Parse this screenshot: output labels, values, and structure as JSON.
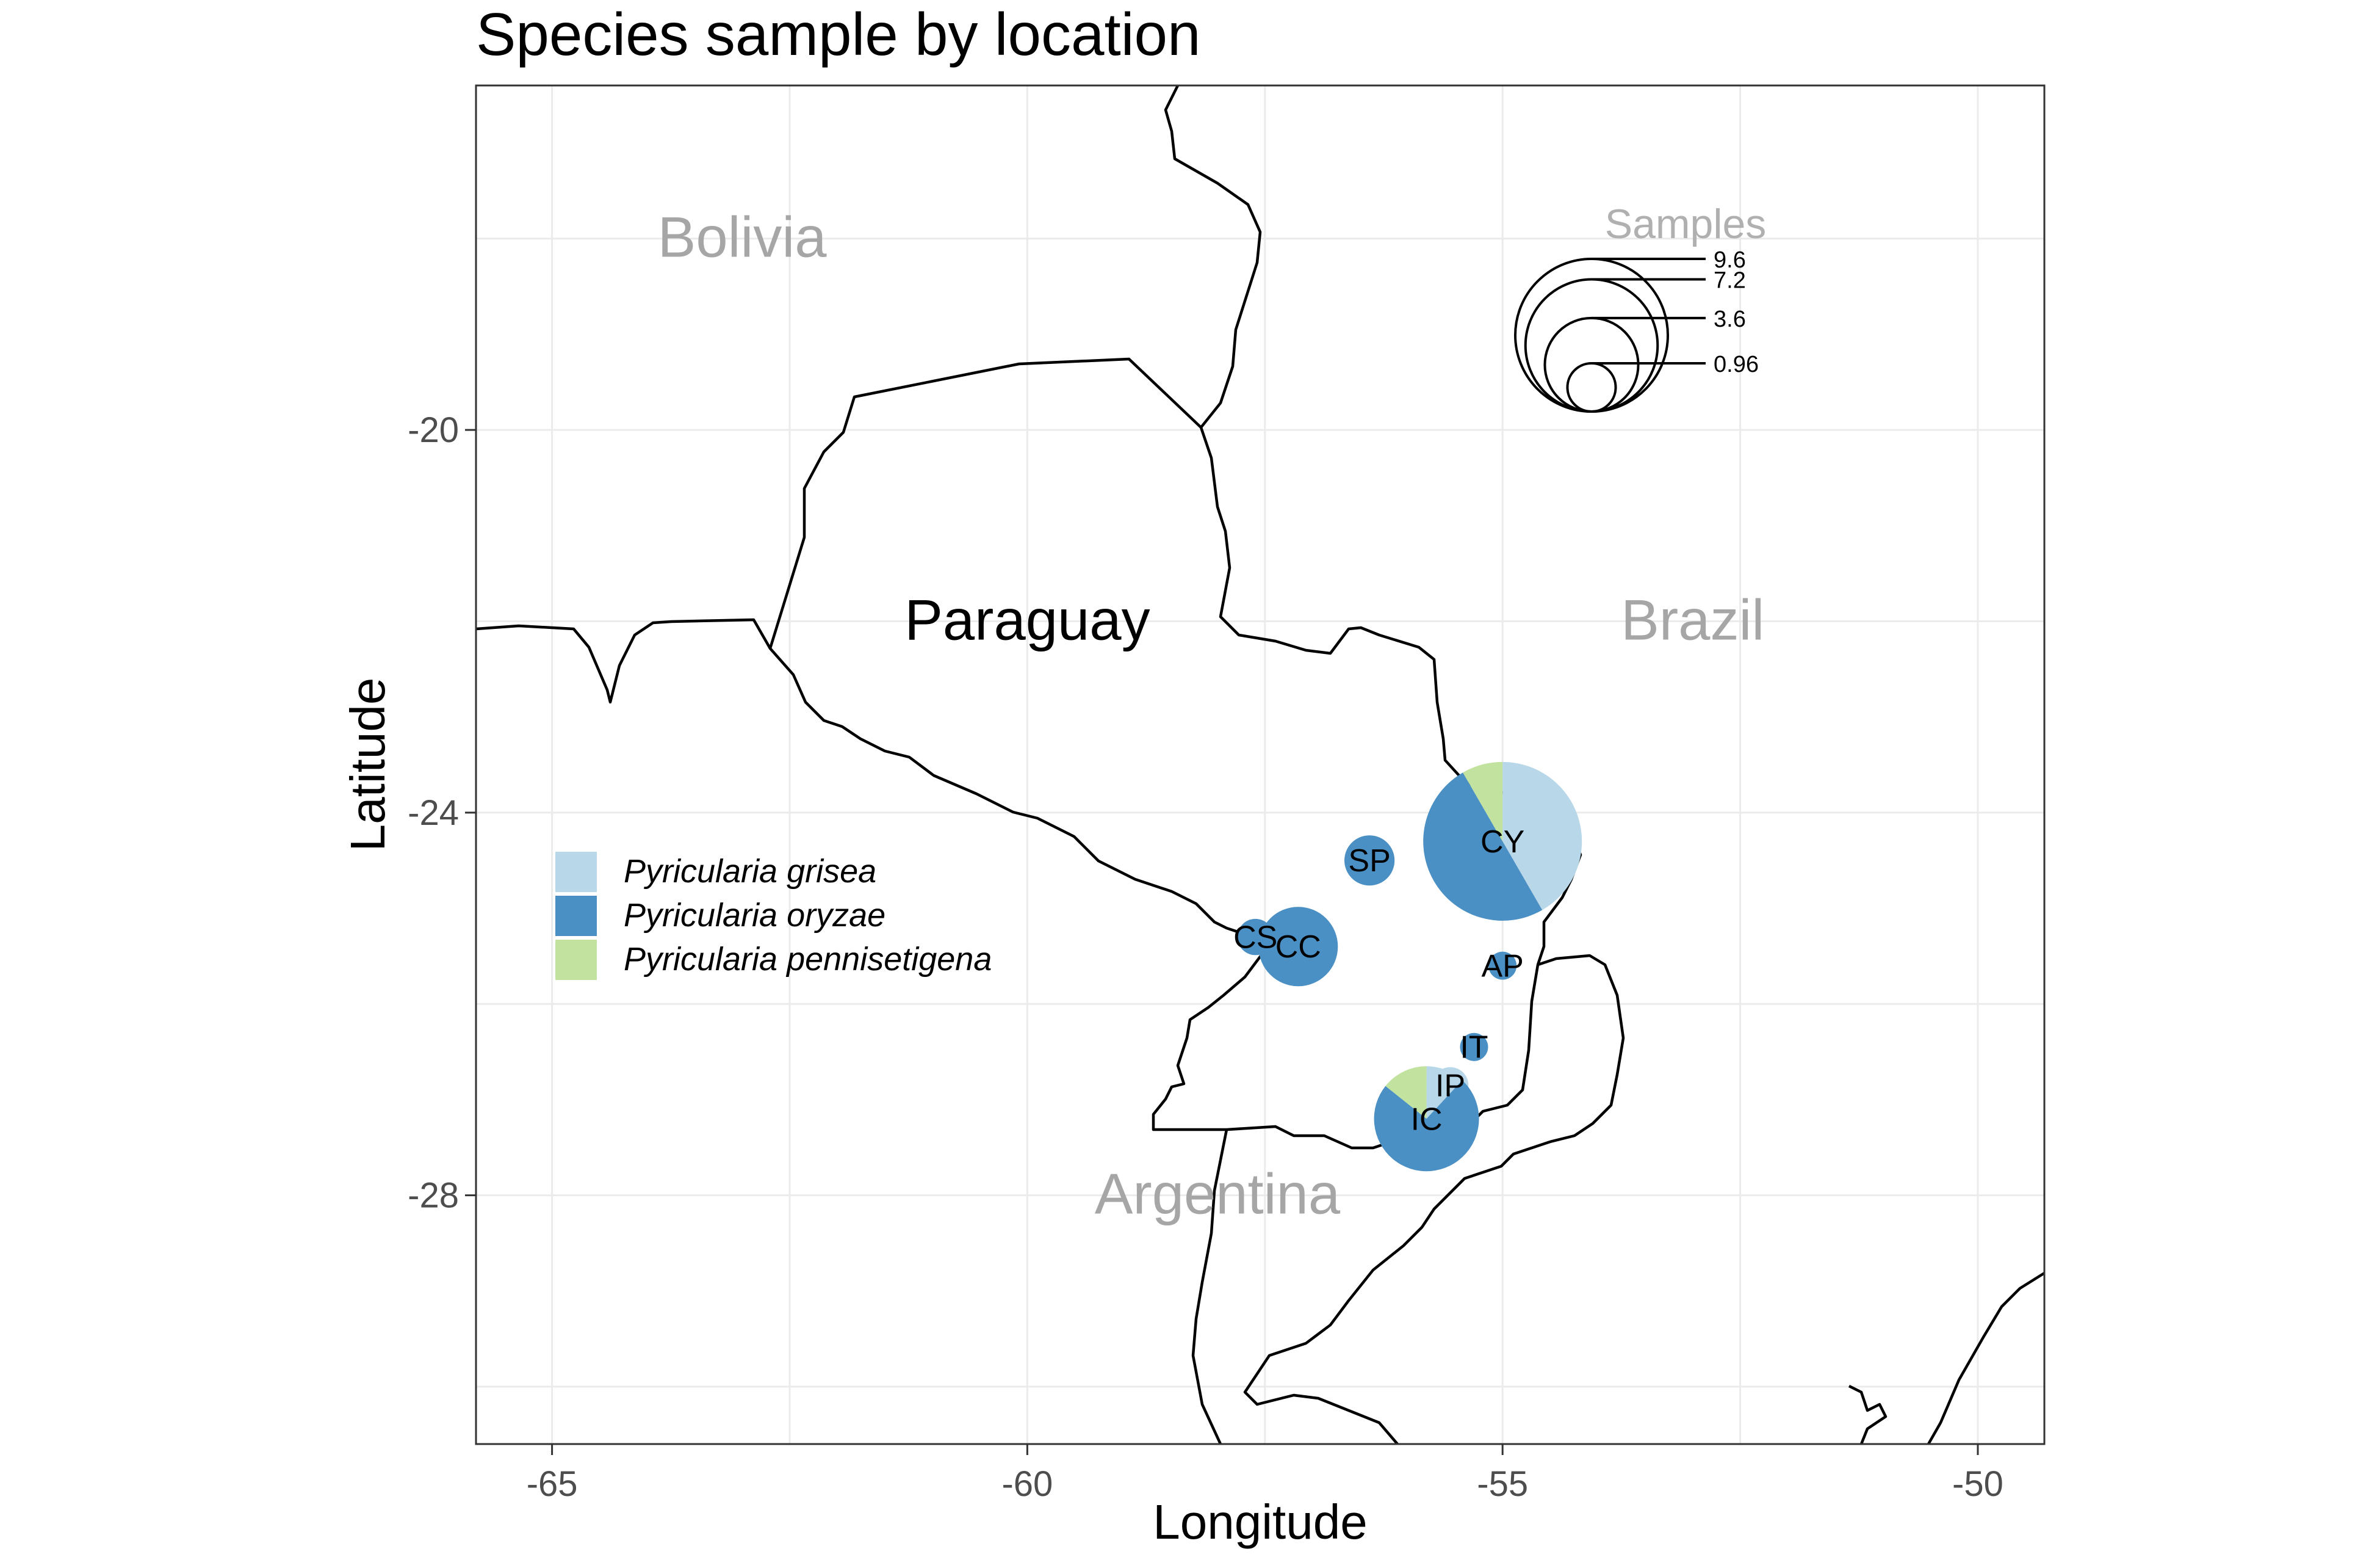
{
  "chart_data": {
    "type": "map",
    "title": "Species sample by location",
    "xlabel": "Longitude",
    "ylabel": "Latitude",
    "xlim": [
      -65.8,
      -49.3
    ],
    "ylim": [
      -30.6,
      -16.4
    ],
    "x_ticks": [
      -65,
      -60,
      -55,
      -50
    ],
    "x_tick_labels": [
      "-65",
      "-60",
      "-55",
      "-50"
    ],
    "y_ticks": [
      -20,
      -24,
      -28
    ],
    "y_tick_labels": [
      "-20",
      "-24",
      "-28"
    ],
    "grid": true,
    "countries": [
      {
        "name": "Bolivia",
        "lon": -63.0,
        "lat": -18.0,
        "color": "#a6a6a6"
      },
      {
        "name": "Paraguay",
        "lon": -60.0,
        "lat": -22.0,
        "color": "#000000"
      },
      {
        "name": "Brazil",
        "lon": -53.0,
        "lat": -22.0,
        "color": "#a6a6a6"
      },
      {
        "name": "Argentina",
        "lon": -58.0,
        "lat": -28.0,
        "color": "#a6a6a6"
      }
    ],
    "series": [
      {
        "name": "Pyricularia grisea",
        "color": "#b8d7e9"
      },
      {
        "name": "Pyricularia oryzae",
        "color": "#4a90c4"
      },
      {
        "name": "Pyricularia pennisetigena",
        "color": "#c2e3a0"
      }
    ],
    "sites": [
      {
        "label": "CY",
        "lon": -55.0,
        "lat": -24.3,
        "total": 9.6,
        "values": [
          4.0,
          4.8,
          0.8
        ]
      },
      {
        "label": "SP",
        "lon": -56.4,
        "lat": -24.5,
        "total": 0.96,
        "values": [
          0,
          0.96,
          0
        ]
      },
      {
        "label": "CS",
        "lon": -57.6,
        "lat": -25.3,
        "total": 0.5,
        "values": [
          0,
          0.5,
          0
        ]
      },
      {
        "label": "CC",
        "lon": -57.15,
        "lat": -25.4,
        "total": 2.4,
        "values": [
          0,
          2.4,
          0
        ]
      },
      {
        "label": "AP",
        "lon": -55.0,
        "lat": -25.6,
        "total": 0.3,
        "values": [
          0,
          0.3,
          0
        ]
      },
      {
        "label": "IT",
        "lon": -55.3,
        "lat": -26.45,
        "total": 0.3,
        "values": [
          0,
          0.3,
          0
        ]
      },
      {
        "label": "IP",
        "lon": -55.55,
        "lat": -26.85,
        "total": 0.5,
        "values": [
          0.5,
          0,
          0
        ]
      },
      {
        "label": "IC",
        "lon": -55.8,
        "lat": -27.2,
        "total": 4.2,
        "values": [
          0.5,
          3.1,
          0.6
        ]
      }
    ],
    "size_legend": {
      "title": "Samples",
      "breaks": [
        9.6,
        7.2,
        3.6,
        0.96
      ],
      "break_labels": [
        "9.6",
        "7.2",
        "3.6",
        "0.96"
      ]
    }
  }
}
